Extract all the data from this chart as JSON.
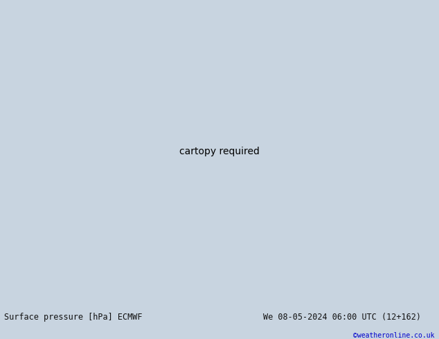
{
  "title_left": "Surface pressure [hPa] ECMWF",
  "title_right": "We 08-05-2024 06:00 UTC (12+162)",
  "copyright": "©weatheronline.co.uk",
  "background_color": "#c8d4e0",
  "land_color": "#b8e0a0",
  "coast_color": "#666666",
  "isobar_red": "#dd0000",
  "isobar_blue": "#0000cc",
  "isobar_black": "#000000",
  "footer_bg": "#ffffff",
  "footer_text": "#111111",
  "copyright_color": "#0000cc",
  "figsize": [
    6.34,
    4.9
  ],
  "dpi": 100,
  "lon_min": 88,
  "lon_max": 179,
  "lat_min": -56,
  "lat_max": -4
}
